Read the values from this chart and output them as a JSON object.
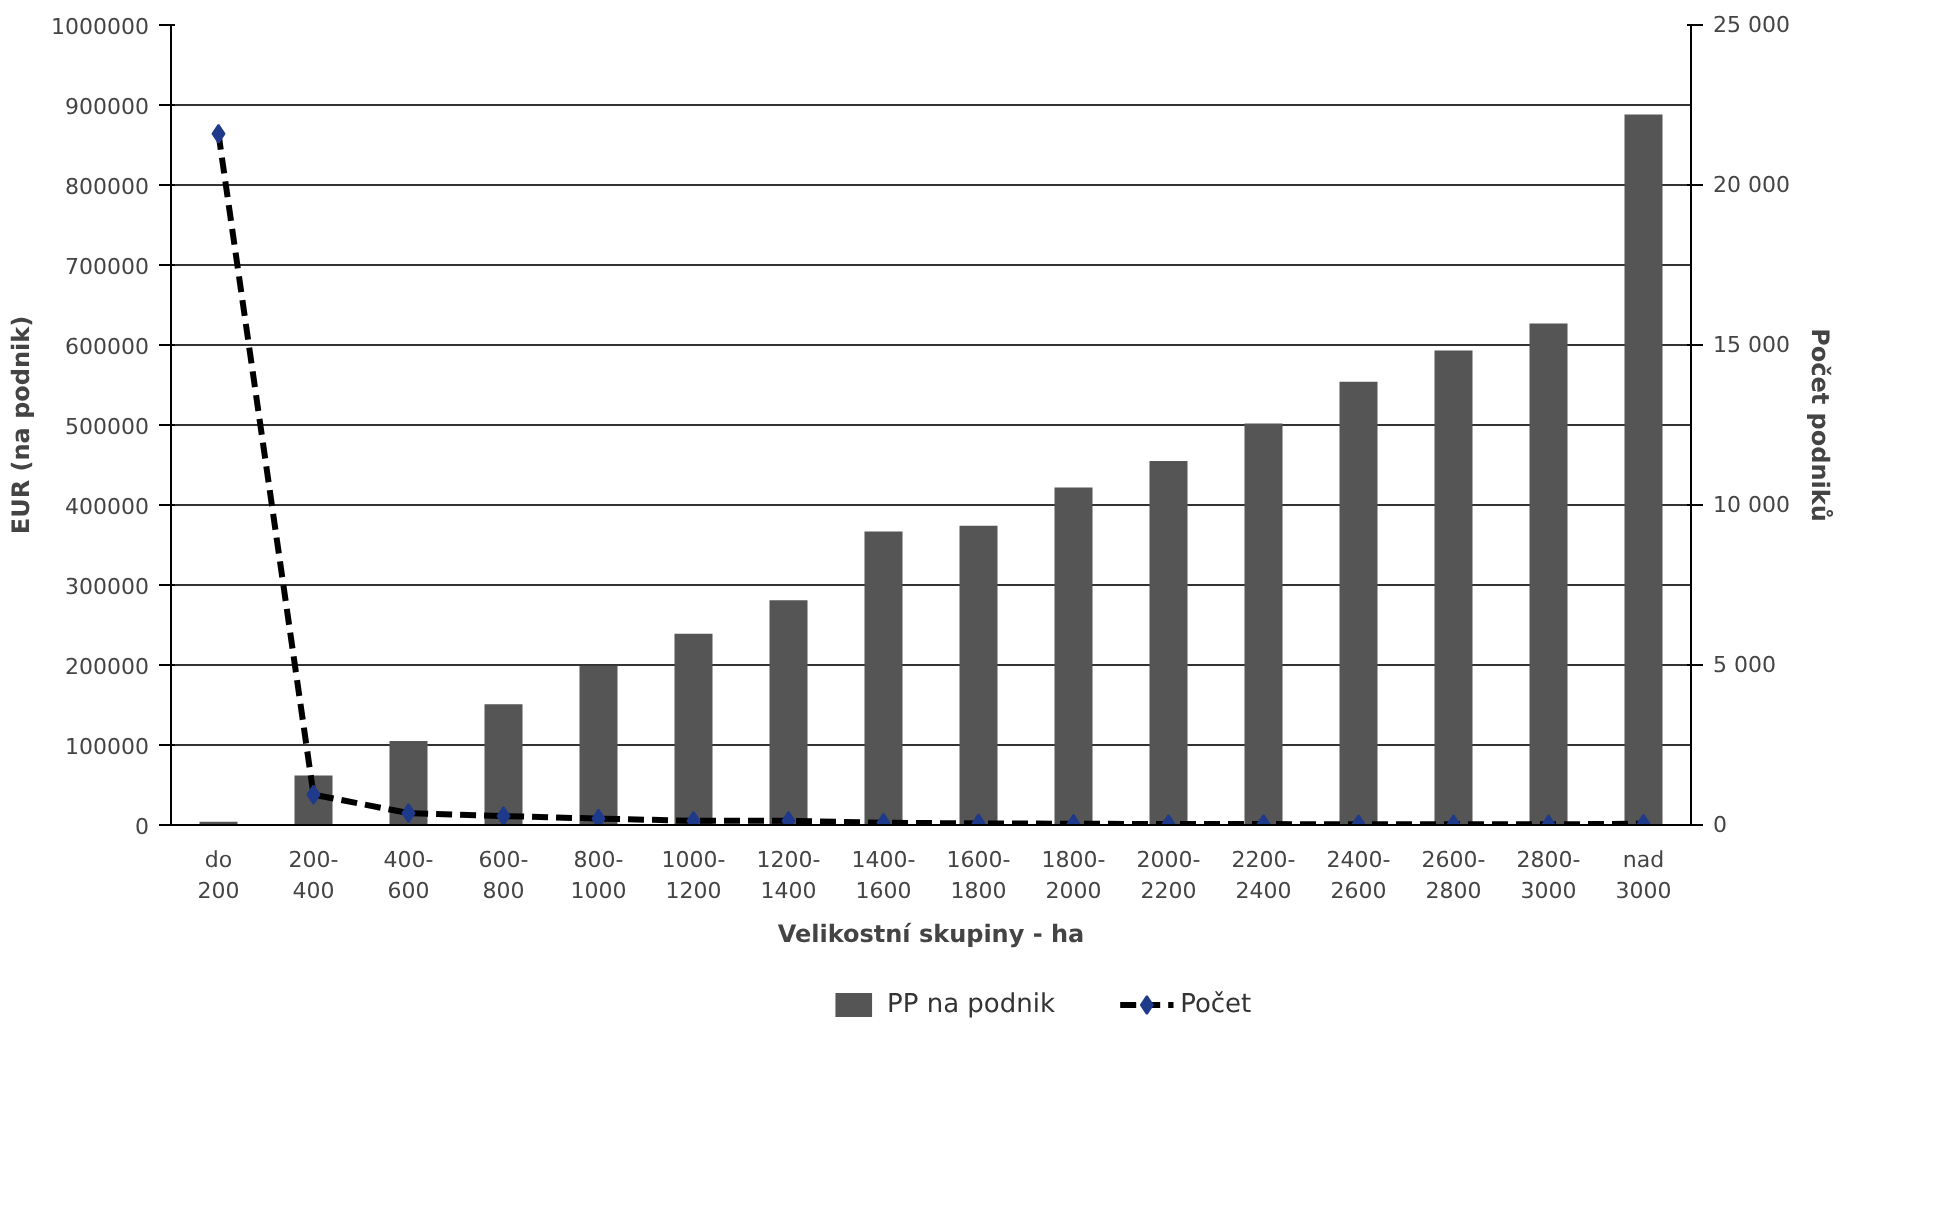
{
  "chart_data": {
    "type": "bar",
    "xlabel": "Velikostní skupiny - ha",
    "ylabel": "EUR (na podnik)",
    "y2label": "Počet podniků",
    "categories": [
      "do\n200",
      "200-\n400",
      "400-\n600",
      "600-\n800",
      "800-\n1000",
      "1000-\n1200",
      "1200-\n1400",
      "1400-\n1600",
      "1600-\n1800",
      "1800-\n2000",
      "2000-\n2200",
      "2200-\n2400",
      "2400-\n2600",
      "2600-\n2800",
      "2800-\n3000",
      "nad\n3000"
    ],
    "series": [
      {
        "name": "PP na podnik",
        "color": "#555555",
        "values": [
          4000,
          62000,
          105000,
          151000,
          199000,
          239000,
          281000,
          367000,
          374000,
          422000,
          455000,
          502000,
          554000,
          593000,
          627000,
          888000
        ]
      },
      {
        "name": "Počet",
        "type": "line",
        "axis": "y2",
        "color": "#000000",
        "marker": "diamond",
        "line_style": "dashed",
        "values": [
          21600,
          950,
          370,
          280,
          200,
          130,
          130,
          70,
          50,
          40,
          30,
          30,
          20,
          20,
          20,
          40
        ]
      }
    ],
    "ylim": [
      0,
      1000000
    ],
    "yticks": [
      0,
      100000,
      200000,
      300000,
      400000,
      500000,
      600000,
      700000,
      800000,
      900000,
      1000000
    ],
    "y2lim": [
      0,
      25000
    ],
    "y2ticks": [
      0,
      {
        "value": 5000,
        "label": "5 000"
      },
      {
        "value": 10000,
        "label": "10 000"
      },
      {
        "value": 15000,
        "label": "15 000"
      },
      {
        "value": 20000,
        "label": "20 000"
      },
      {
        "value": 25000,
        "label": "25 000"
      }
    ],
    "grid": "y",
    "legend": "bottom"
  }
}
